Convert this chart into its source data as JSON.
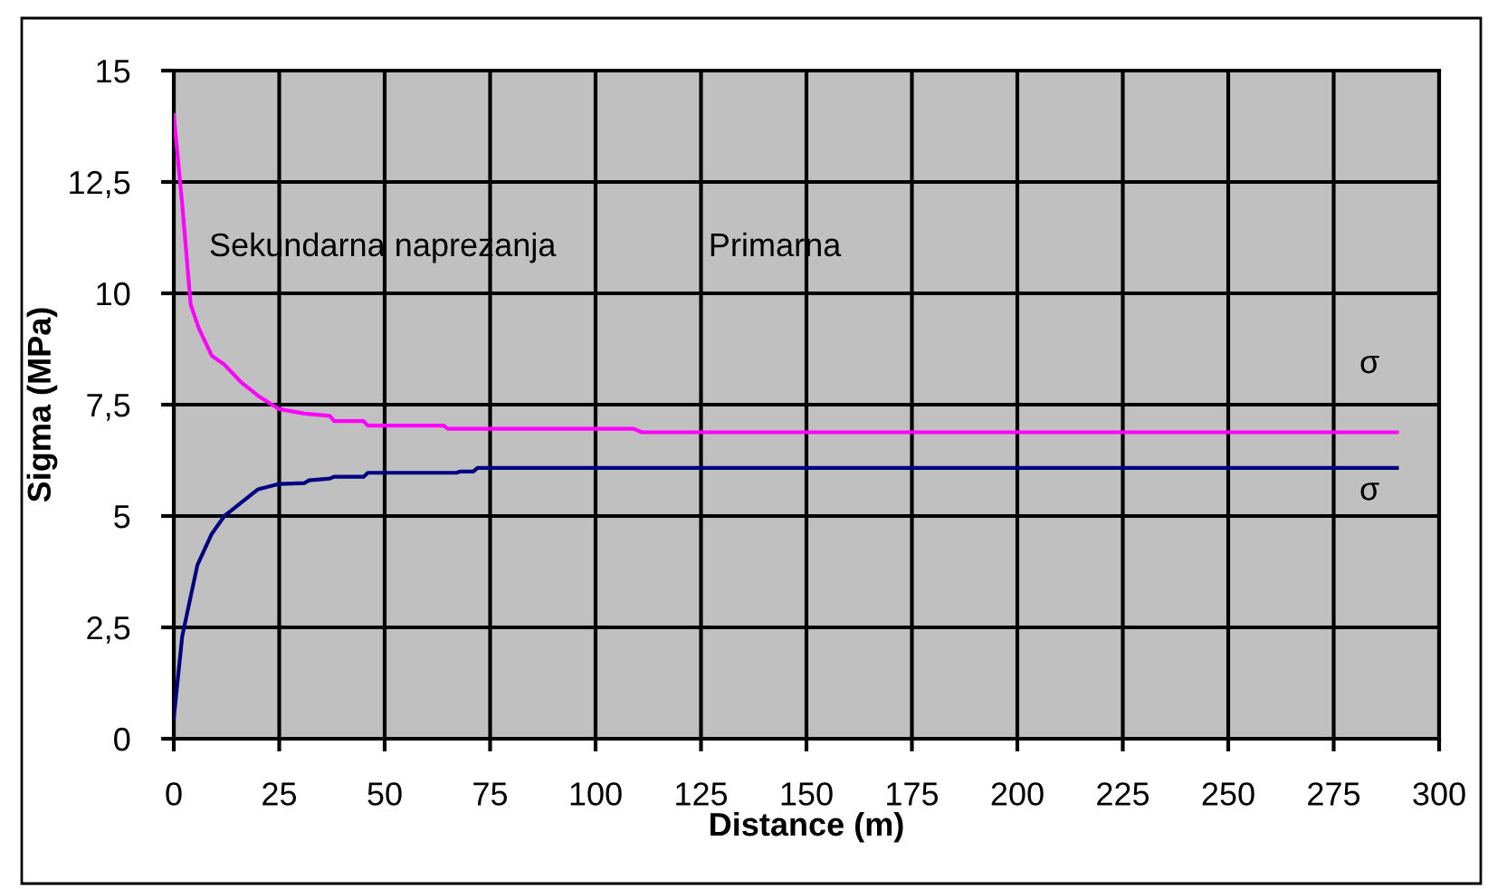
{
  "chart_data": {
    "type": "line",
    "xlabel": "Distance (m)",
    "ylabel": "Sigma (MPa)",
    "xlim": [
      0,
      300
    ],
    "xticks": [
      0,
      25,
      50,
      75,
      100,
      125,
      150,
      175,
      200,
      225,
      250,
      275,
      300
    ],
    "ylim": [
      0,
      15
    ],
    "yticks": [
      0,
      {
        "value": 2.5,
        "label": "2,5"
      },
      5,
      {
        "value": 7.5,
        "label": "7,5"
      },
      10,
      {
        "value": 12.5,
        "label": "12,5"
      },
      15
    ],
    "grid": true,
    "line_style": "solid",
    "marker": "none",
    "series": [
      {
        "color": "#ff00ff",
        "x": [
          0,
          2,
          4,
          6,
          9,
          12,
          16,
          20,
          25,
          31,
          37,
          38,
          45,
          46,
          64,
          65,
          109,
          111,
          290
        ],
        "values": [
          14,
          12,
          9.75,
          9.2,
          8.6,
          8.4,
          8.0,
          7.7,
          7.4,
          7.3,
          7.25,
          7.13,
          7.13,
          7.03,
          7.03,
          6.96,
          6.96,
          6.88,
          6.88
        ]
      },
      {
        "color": "#000080",
        "x": [
          0,
          2,
          5.6,
          9,
          12,
          16,
          20,
          25,
          31,
          32,
          37,
          38,
          45,
          46,
          67,
          68,
          71,
          72,
          290
        ],
        "values": [
          0.46,
          2.3,
          3.9,
          4.6,
          5.0,
          5.3,
          5.6,
          5.72,
          5.74,
          5.8,
          5.84,
          5.88,
          5.88,
          5.97,
          5.97,
          6.0,
          6.0,
          6.08,
          6.08
        ]
      }
    ],
    "annotations": [
      "Sekundarna naprezanja",
      "Primarna",
      "σ",
      "σ"
    ]
  }
}
